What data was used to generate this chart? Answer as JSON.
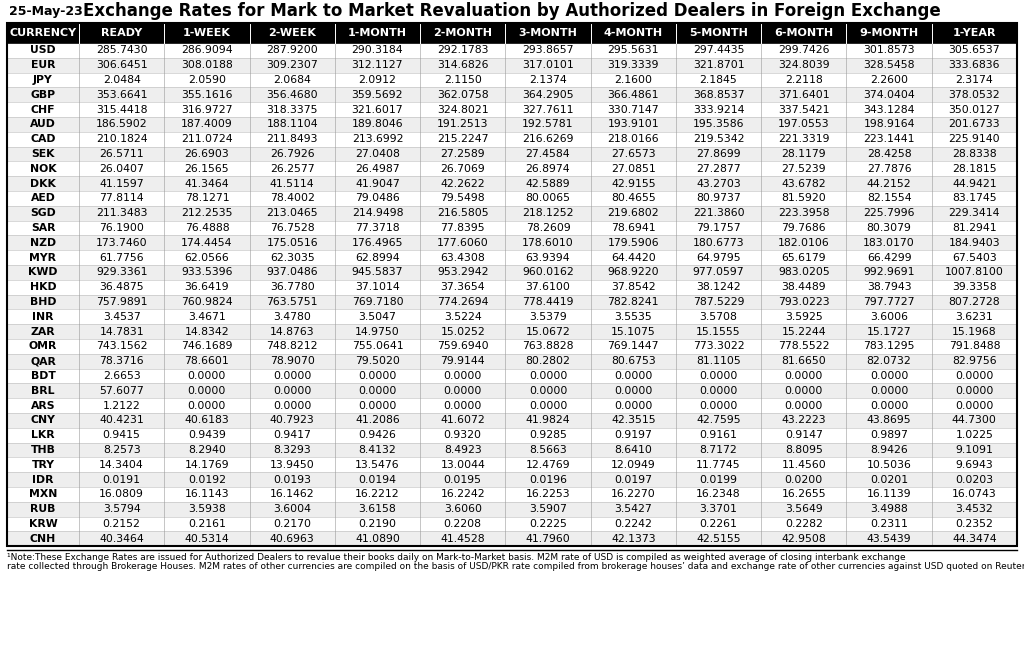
{
  "title": "Exchange Rates for Mark to Market Revaluation by Authorized Dealers in Foreign Exchange",
  "date": "25-May-23",
  "columns": [
    "CURRENCY",
    "READY",
    "1-WEEK",
    "2-WEEK",
    "1-MONTH",
    "2-MONTH",
    "3-MONTH",
    "4-MONTH",
    "5-MONTH",
    "6-MONTH",
    "9-MONTH",
    "1-YEAR"
  ],
  "rows": [
    [
      "USD",
      "285.7430",
      "286.9094",
      "287.9200",
      "290.3184",
      "292.1783",
      "293.8657",
      "295.5631",
      "297.4435",
      "299.7426",
      "301.8573",
      "305.6537"
    ],
    [
      "EUR",
      "306.6451",
      "308.0188",
      "309.2307",
      "312.1127",
      "314.6826",
      "317.0101",
      "319.3339",
      "321.8701",
      "324.8039",
      "328.5458",
      "333.6836"
    ],
    [
      "JPY",
      "2.0484",
      "2.0590",
      "2.0684",
      "2.0912",
      "2.1150",
      "2.1374",
      "2.1600",
      "2.1845",
      "2.2118",
      "2.2600",
      "2.3174"
    ],
    [
      "GBP",
      "353.6641",
      "355.1616",
      "356.4680",
      "359.5692",
      "362.0758",
      "364.2905",
      "366.4861",
      "368.8537",
      "371.6401",
      "374.0404",
      "378.0532"
    ],
    [
      "CHF",
      "315.4418",
      "316.9727",
      "318.3375",
      "321.6017",
      "324.8021",
      "327.7611",
      "330.7147",
      "333.9214",
      "337.5421",
      "343.1284",
      "350.0127"
    ],
    [
      "AUD",
      "186.5902",
      "187.4009",
      "188.1104",
      "189.8046",
      "191.2513",
      "192.5781",
      "193.9101",
      "195.3586",
      "197.0553",
      "198.9164",
      "201.6733"
    ],
    [
      "CAD",
      "210.1824",
      "211.0724",
      "211.8493",
      "213.6992",
      "215.2247",
      "216.6269",
      "218.0166",
      "219.5342",
      "221.3319",
      "223.1441",
      "225.9140"
    ],
    [
      "SEK",
      "26.5711",
      "26.6903",
      "26.7926",
      "27.0408",
      "27.2589",
      "27.4584",
      "27.6573",
      "27.8699",
      "28.1179",
      "28.4258",
      "28.8338"
    ],
    [
      "NOK",
      "26.0407",
      "26.1565",
      "26.2577",
      "26.4987",
      "26.7069",
      "26.8974",
      "27.0851",
      "27.2877",
      "27.5239",
      "27.7876",
      "28.1815"
    ],
    [
      "DKK",
      "41.1597",
      "41.3464",
      "41.5114",
      "41.9047",
      "42.2622",
      "42.5889",
      "42.9155",
      "43.2703",
      "43.6782",
      "44.2152",
      "44.9421"
    ],
    [
      "AED",
      "77.8114",
      "78.1271",
      "78.4002",
      "79.0486",
      "79.5498",
      "80.0065",
      "80.4655",
      "80.9737",
      "81.5920",
      "82.1554",
      "83.1745"
    ],
    [
      "SGD",
      "211.3483",
      "212.2535",
      "213.0465",
      "214.9498",
      "216.5805",
      "218.1252",
      "219.6802",
      "221.3860",
      "223.3958",
      "225.7996",
      "229.3414"
    ],
    [
      "SAR",
      "76.1900",
      "76.4888",
      "76.7528",
      "77.3718",
      "77.8395",
      "78.2609",
      "78.6941",
      "79.1757",
      "79.7686",
      "80.3079",
      "81.2941"
    ],
    [
      "NZD",
      "173.7460",
      "174.4454",
      "175.0516",
      "176.4965",
      "177.6060",
      "178.6010",
      "179.5906",
      "180.6773",
      "182.0106",
      "183.0170",
      "184.9403"
    ],
    [
      "MYR",
      "61.7756",
      "62.0566",
      "62.3035",
      "62.8994",
      "63.4308",
      "63.9394",
      "64.4420",
      "64.9795",
      "65.6179",
      "66.4299",
      "67.5403"
    ],
    [
      "KWD",
      "929.3361",
      "933.5396",
      "937.0486",
      "945.5837",
      "953.2942",
      "960.0162",
      "968.9220",
      "977.0597",
      "983.0205",
      "992.9691",
      "1007.8100"
    ],
    [
      "HKD",
      "36.4875",
      "36.6419",
      "36.7780",
      "37.1014",
      "37.3654",
      "37.6100",
      "37.8542",
      "38.1242",
      "38.4489",
      "38.7943",
      "39.3358"
    ],
    [
      "BHD",
      "757.9891",
      "760.9824",
      "763.5751",
      "769.7180",
      "774.2694",
      "778.4419",
      "782.8241",
      "787.5229",
      "793.0223",
      "797.7727",
      "807.2728"
    ],
    [
      "INR",
      "3.4537",
      "3.4671",
      "3.4780",
      "3.5047",
      "3.5224",
      "3.5379",
      "3.5535",
      "3.5708",
      "3.5925",
      "3.6006",
      "3.6231"
    ],
    [
      "ZAR",
      "14.7831",
      "14.8342",
      "14.8763",
      "14.9750",
      "15.0252",
      "15.0672",
      "15.1075",
      "15.1555",
      "15.2244",
      "15.1727",
      "15.1968"
    ],
    [
      "OMR",
      "743.1562",
      "746.1689",
      "748.8212",
      "755.0641",
      "759.6940",
      "763.8828",
      "769.1447",
      "773.3022",
      "778.5522",
      "783.1295",
      "791.8488"
    ],
    [
      "QAR",
      "78.3716",
      "78.6601",
      "78.9070",
      "79.5020",
      "79.9144",
      "80.2802",
      "80.6753",
      "81.1105",
      "81.6650",
      "82.0732",
      "82.9756"
    ],
    [
      "BDT",
      "2.6653",
      "0.0000",
      "0.0000",
      "0.0000",
      "0.0000",
      "0.0000",
      "0.0000",
      "0.0000",
      "0.0000",
      "0.0000",
      "0.0000"
    ],
    [
      "BRL",
      "57.6077",
      "0.0000",
      "0.0000",
      "0.0000",
      "0.0000",
      "0.0000",
      "0.0000",
      "0.0000",
      "0.0000",
      "0.0000",
      "0.0000"
    ],
    [
      "ARS",
      "1.2122",
      "0.0000",
      "0.0000",
      "0.0000",
      "0.0000",
      "0.0000",
      "0.0000",
      "0.0000",
      "0.0000",
      "0.0000",
      "0.0000"
    ],
    [
      "CNY",
      "40.4231",
      "40.6183",
      "40.7923",
      "41.2086",
      "41.6072",
      "41.9824",
      "42.3515",
      "42.7595",
      "43.2223",
      "43.8695",
      "44.7300"
    ],
    [
      "LKR",
      "0.9415",
      "0.9439",
      "0.9417",
      "0.9426",
      "0.9320",
      "0.9285",
      "0.9197",
      "0.9161",
      "0.9147",
      "0.9897",
      "1.0225"
    ],
    [
      "THB",
      "8.2573",
      "8.2940",
      "8.3293",
      "8.4132",
      "8.4923",
      "8.5663",
      "8.6410",
      "8.7172",
      "8.8095",
      "8.9426",
      "9.1091"
    ],
    [
      "TRY",
      "14.3404",
      "14.1769",
      "13.9450",
      "13.5476",
      "13.0044",
      "12.4769",
      "12.0949",
      "11.7745",
      "11.4560",
      "10.5036",
      "9.6943"
    ],
    [
      "IDR",
      "0.0191",
      "0.0192",
      "0.0193",
      "0.0194",
      "0.0195",
      "0.0196",
      "0.0197",
      "0.0199",
      "0.0200",
      "0.0201",
      "0.0203"
    ],
    [
      "MXN",
      "16.0809",
      "16.1143",
      "16.1462",
      "16.2212",
      "16.2242",
      "16.2253",
      "16.2270",
      "16.2348",
      "16.2655",
      "16.1139",
      "16.0743"
    ],
    [
      "RUB",
      "3.5794",
      "3.5938",
      "3.6004",
      "3.6158",
      "3.6060",
      "3.5907",
      "3.5427",
      "3.3701",
      "3.5649",
      "3.4988",
      "3.4532"
    ],
    [
      "KRW",
      "0.2152",
      "0.2161",
      "0.2170",
      "0.2190",
      "0.2208",
      "0.2225",
      "0.2242",
      "0.2261",
      "0.2282",
      "0.2311",
      "0.2352"
    ],
    [
      "CNH",
      "40.3464",
      "40.5314",
      "40.6963",
      "41.0890",
      "41.4528",
      "41.7960",
      "42.1373",
      "42.5155",
      "42.9508",
      "43.5439",
      "44.3474"
    ]
  ],
  "note": "¹Note:These Exchange Rates are issued for Authorized Dealers to revalue their books daily on Mark-to-Market basis. M2M rate of USD is compiled as weighted average of closing interbank exchange rate collected through Brokerage Houses. M2M rates of other currencies are compiled on the basis of USD/PKR rate compiled from brokerage houses’ data and exchange rate of other currencies against USD quoted on Reuters Eikon Terminal.",
  "header_bg": "#000000",
  "header_fg": "#ffffff",
  "row_bg_even": "#ffffff",
  "row_bg_odd": "#eeeeee",
  "border_color": "#000000",
  "title_fontsize": 12,
  "date_fontsize": 9,
  "header_fontsize": 8,
  "cell_fontsize": 7.8,
  "note_fontsize": 6.5
}
